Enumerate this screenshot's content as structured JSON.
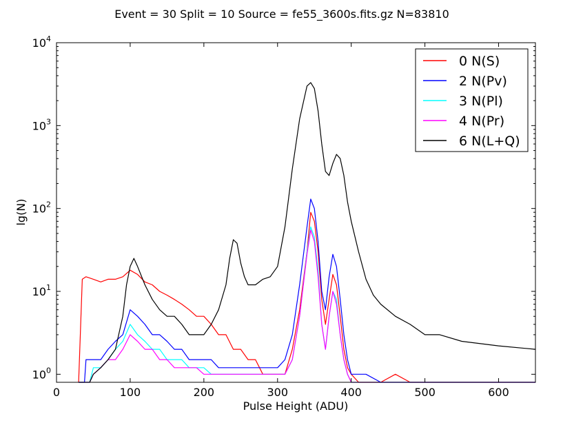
{
  "chart_data": {
    "type": "line",
    "title": "Event = 30 Split = 10 Source = fe55_3600s.fits.gz N=83810",
    "xlabel": "Pulse Height (ADU)",
    "ylabel": "lg(N)",
    "xlim": [
      0,
      650
    ],
    "ylim": [
      0.8,
      10000
    ],
    "yscale": "log",
    "x_ticks": [
      0,
      100,
      200,
      300,
      400,
      500,
      600
    ],
    "x_tick_labels": [
      "0",
      "100",
      "200",
      "300",
      "400",
      "500",
      "600"
    ],
    "y_ticks": [
      {
        "value": 1,
        "base": "10",
        "exp": "0"
      },
      {
        "value": 10,
        "base": "10",
        "exp": "1"
      },
      {
        "value": 100,
        "base": "10",
        "exp": "2"
      },
      {
        "value": 1000,
        "base": "10",
        "exp": "3"
      },
      {
        "value": 10000,
        "base": "10",
        "exp": "4"
      }
    ],
    "grid": false,
    "legend_position": "top-right",
    "series": [
      {
        "name": "0 N(S)",
        "color": "#ff0000",
        "x": [
          30,
          35,
          40,
          50,
          60,
          70,
          80,
          90,
          100,
          110,
          120,
          130,
          140,
          150,
          160,
          170,
          180,
          190,
          200,
          210,
          220,
          230,
          240,
          250,
          260,
          270,
          280,
          290,
          300,
          310,
          320,
          330,
          340,
          345,
          350,
          355,
          360,
          365,
          370,
          375,
          380,
          385,
          390,
          395,
          400,
          410,
          420,
          440,
          460,
          480,
          500,
          520,
          550,
          600,
          650
        ],
        "y": [
          0.8,
          14,
          15,
          14,
          13,
          14,
          14,
          15,
          18,
          16,
          13,
          12,
          10,
          9,
          8,
          7,
          6,
          5,
          5,
          4,
          3,
          3,
          2,
          2,
          1.5,
          1.5,
          1,
          1,
          1,
          1,
          2,
          6,
          30,
          90,
          70,
          30,
          8,
          4,
          8,
          16,
          12,
          5,
          2,
          1.2,
          1,
          0.8,
          0.8,
          0.8,
          1,
          0.8,
          0.8,
          0.8,
          0.8,
          0.8,
          0.8
        ]
      },
      {
        "name": "2 N(Pv)",
        "color": "#0000ff",
        "x": [
          30,
          38,
          40,
          50,
          60,
          70,
          80,
          90,
          100,
          110,
          120,
          130,
          140,
          150,
          160,
          170,
          180,
          190,
          200,
          210,
          220,
          230,
          240,
          250,
          260,
          270,
          280,
          290,
          300,
          310,
          320,
          330,
          340,
          345,
          350,
          355,
          360,
          365,
          370,
          375,
          380,
          385,
          390,
          395,
          400,
          410,
          420,
          440,
          460,
          480,
          500,
          520,
          550,
          600,
          650
        ],
        "y": [
          0.8,
          0.8,
          1.5,
          1.5,
          1.5,
          2,
          2.5,
          3,
          6,
          5,
          4,
          3,
          3,
          2.5,
          2,
          2,
          1.5,
          1.5,
          1.5,
          1.5,
          1.2,
          1.2,
          1.2,
          1.2,
          1.2,
          1.2,
          1.2,
          1.2,
          1.2,
          1.5,
          3,
          12,
          60,
          130,
          100,
          40,
          10,
          6,
          15,
          28,
          20,
          8,
          3,
          1.5,
          1,
          1,
          1,
          0.8,
          0.8,
          0.8,
          0.8,
          0.8,
          0.8,
          0.8,
          0.8
        ]
      },
      {
        "name": "3 N(Pl)",
        "color": "#00ffff",
        "x": [
          30,
          45,
          50,
          60,
          70,
          80,
          90,
          100,
          110,
          120,
          130,
          140,
          150,
          160,
          170,
          180,
          190,
          200,
          210,
          220,
          230,
          240,
          250,
          260,
          270,
          280,
          290,
          300,
          310,
          320,
          330,
          340,
          345,
          350,
          355,
          360,
          365,
          370,
          375,
          380,
          385,
          390,
          395,
          400,
          410,
          420,
          440,
          460,
          480,
          500,
          520,
          550,
          600,
          650
        ],
        "y": [
          0.8,
          0.8,
          1.2,
          1.2,
          1.5,
          2,
          2.5,
          4,
          3,
          2.5,
          2,
          2,
          1.5,
          1.5,
          1.5,
          1.2,
          1.2,
          1.2,
          1,
          1,
          1,
          1,
          1,
          1,
          1,
          1,
          1,
          1,
          1,
          1.5,
          5,
          30,
          60,
          45,
          18,
          4,
          2,
          5,
          10,
          8,
          3,
          1.5,
          1,
          0.8,
          0.8,
          0.8,
          0.8,
          0.8,
          0.8,
          0.8,
          0.8,
          0.8,
          0.8,
          0.8
        ]
      },
      {
        "name": "4 N(Pr)",
        "color": "#ff00ff",
        "x": [
          30,
          45,
          50,
          60,
          70,
          80,
          90,
          100,
          110,
          120,
          130,
          140,
          150,
          160,
          170,
          180,
          190,
          200,
          210,
          220,
          230,
          240,
          250,
          260,
          270,
          280,
          290,
          300,
          310,
          320,
          330,
          340,
          345,
          350,
          355,
          360,
          365,
          370,
          375,
          380,
          385,
          390,
          395,
          400,
          410,
          420,
          440,
          460,
          480,
          500,
          520,
          550,
          600,
          650
        ],
        "y": [
          0.8,
          0.8,
          1,
          1.2,
          1.5,
          1.5,
          2,
          3,
          2.5,
          2,
          2,
          1.5,
          1.5,
          1.2,
          1.2,
          1.2,
          1.2,
          1,
          1,
          1,
          1,
          1,
          1,
          1,
          1,
          1,
          1,
          1,
          1,
          1.5,
          5,
          28,
          55,
          40,
          15,
          4,
          2,
          5,
          10,
          7,
          3,
          1.5,
          1,
          0.8,
          0.8,
          0.8,
          0.8,
          0.8,
          0.8,
          0.8,
          0.8,
          0.8,
          0.8,
          0.8
        ]
      },
      {
        "name": "6 N(L+Q)",
        "color": "#000000",
        "x": [
          30,
          45,
          50,
          60,
          70,
          80,
          90,
          95,
          100,
          105,
          110,
          120,
          130,
          140,
          150,
          160,
          170,
          180,
          190,
          200,
          210,
          220,
          230,
          235,
          240,
          245,
          250,
          255,
          260,
          270,
          280,
          290,
          300,
          310,
          320,
          330,
          340,
          345,
          350,
          355,
          360,
          365,
          370,
          375,
          380,
          385,
          390,
          395,
          400,
          410,
          420,
          430,
          440,
          460,
          480,
          500,
          520,
          550,
          600,
          650
        ],
        "y": [
          0.8,
          0.8,
          1,
          1.2,
          1.5,
          2,
          5,
          12,
          20,
          25,
          20,
          12,
          8,
          6,
          5,
          5,
          4,
          3,
          3,
          3,
          4,
          6,
          12,
          25,
          42,
          38,
          22,
          15,
          12,
          12,
          14,
          15,
          20,
          60,
          300,
          1200,
          3000,
          3300,
          2800,
          1500,
          600,
          280,
          250,
          350,
          450,
          400,
          250,
          120,
          70,
          30,
          14,
          9,
          7,
          5,
          4,
          3,
          3,
          2.5,
          2.2,
          2
        ]
      }
    ]
  }
}
